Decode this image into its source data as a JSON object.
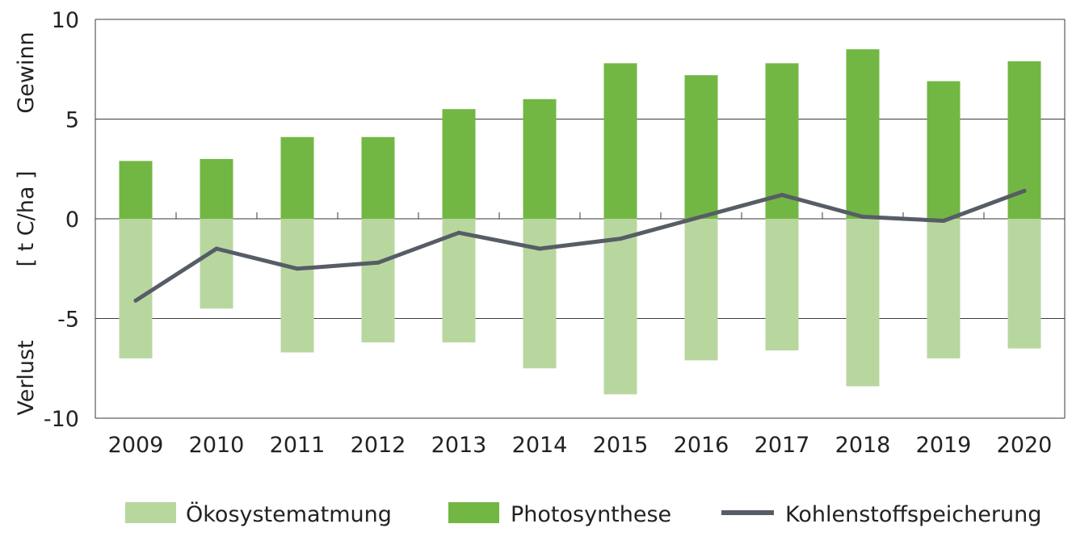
{
  "chart_data": {
    "type": "bar",
    "categories": [
      "2009",
      "2010",
      "2011",
      "2012",
      "2013",
      "2014",
      "2015",
      "2016",
      "2017",
      "2018",
      "2019",
      "2020"
    ],
    "series": [
      {
        "name": "Ökosystematmung",
        "kind": "bar",
        "color": "#b8d79f",
        "values": [
          -7.0,
          -4.5,
          -6.7,
          -6.2,
          -6.2,
          -7.5,
          -8.8,
          -7.1,
          -6.6,
          -8.4,
          -7.0,
          -6.5
        ]
      },
      {
        "name": "Photosynthese",
        "kind": "bar",
        "color": "#72b743",
        "values": [
          2.9,
          3.0,
          4.1,
          4.1,
          5.5,
          6.0,
          7.8,
          7.2,
          7.8,
          8.5,
          6.9,
          7.9
        ]
      },
      {
        "name": "Kohlenstoffspeicherung",
        "kind": "line",
        "color": "#575d66",
        "values": [
          -4.1,
          -1.5,
          -2.5,
          -2.2,
          -0.7,
          -1.5,
          -1.0,
          0.1,
          1.2,
          0.1,
          -0.1,
          1.4
        ]
      }
    ],
    "ylim": [
      -10,
      10
    ],
    "yticks": [
      "10",
      "5",
      "0",
      "-5",
      "-10"
    ],
    "ylabel": "[ t C/ha ]",
    "ylabel_top": "Gewinn",
    "ylabel_bottom": "Verlust",
    "grid": true,
    "legend_position": "bottom"
  }
}
